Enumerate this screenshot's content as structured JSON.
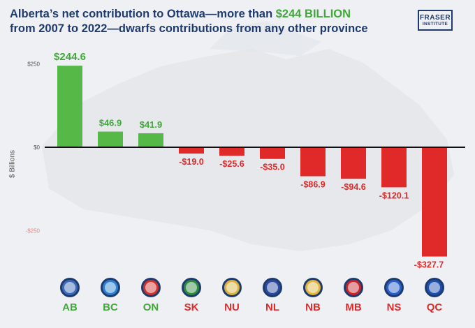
{
  "title": {
    "line1_prefix": "Alberta’s net contribution to Ottawa—more than ",
    "line1_highlight": "$244 BILLION",
    "line2": "from 2007 to 2022—dwarfs contributions from any other province"
  },
  "logo": {
    "line1": "FRASER",
    "line2": "INSTITUTE"
  },
  "colors": {
    "positive": "#55b847",
    "negative": "#e02a2a",
    "title": "#1f3b6e",
    "highlight": "#41a83a"
  },
  "chart_data": {
    "type": "bar",
    "categories": [
      "AB",
      "BC",
      "ON",
      "SK",
      "NU",
      "NL",
      "NB",
      "MB",
      "NS",
      "QC"
    ],
    "values": [
      244.6,
      46.9,
      41.9,
      -19.0,
      -25.6,
      -35.0,
      -86.9,
      -94.6,
      -120.1,
      -327.7
    ],
    "value_labels": [
      "$244.6",
      "$46.9",
      "$41.9",
      "-$19.0",
      "-$25.6",
      "-$35.0",
      "-$86.9",
      "-$94.6",
      "-$120.1",
      "-$327.7"
    ],
    "ylabel": "$ Billions",
    "yticks": [
      250,
      0,
      -250
    ],
    "ytick_labels": [
      "$250",
      "$0",
      "-$250"
    ],
    "ylim": [
      -330,
      270
    ],
    "category_icons": [
      "alberta-flag-icon",
      "bc-flag-icon",
      "ontario-flag-icon",
      "saskatchewan-flag-icon",
      "nunavut-flag-icon",
      "newfoundland-flag-icon",
      "new-brunswick-flag-icon",
      "manitoba-flag-icon",
      "nova-scotia-flag-icon",
      "quebec-flag-icon"
    ]
  }
}
